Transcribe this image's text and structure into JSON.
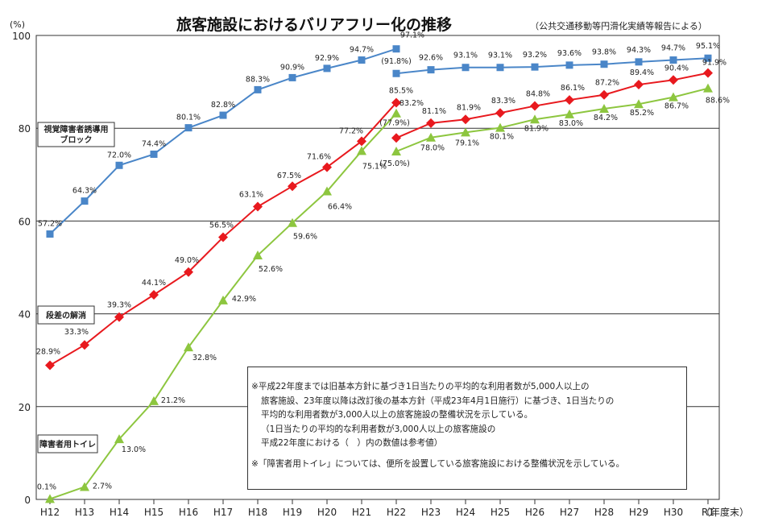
{
  "chart_data": {
    "type": "line",
    "title": "旅客施設におけるバリアフリー化の推移",
    "source": "（公共交通移動等円滑化実績等報告による）",
    "ylabel": "(%)",
    "xlabel": "（年度末）",
    "ylim": [
      0,
      100
    ],
    "yticks": [
      "0",
      "20",
      "40",
      "60",
      "80",
      "100"
    ],
    "categories": [
      "H12",
      "H13",
      "H14",
      "H15",
      "H16",
      "H17",
      "H18",
      "H19",
      "H20",
      "H21",
      "H22",
      "H23",
      "H24",
      "H25",
      "H26",
      "H27",
      "H28",
      "H29",
      "H30",
      "R1"
    ],
    "series": [
      {
        "name": "視覚障害者誘導用ブロック",
        "label_line1": "視覚障害者誘導用",
        "label_line2": "ブロック",
        "color": "#4a86c8",
        "marker": "square",
        "old": {
          "values": [
            57.2,
            64.3,
            72.0,
            74.4,
            80.1,
            82.8,
            88.3,
            90.9,
            92.9,
            94.7,
            97.1
          ],
          "labels": [
            "57.2%",
            "64.3%",
            "72.0%",
            "74.4%",
            "80.1%",
            "82.8%",
            "88.3%",
            "90.9%",
            "92.9%",
            "94.7%",
            "97.1%"
          ]
        },
        "new": {
          "values": [
            91.8,
            92.6,
            93.1,
            93.1,
            93.2,
            93.6,
            93.8,
            94.3,
            94.7,
            95.1
          ],
          "labels": [
            "(91.8%)",
            "92.6%",
            "93.1%",
            "93.1%",
            "93.2%",
            "93.6%",
            "93.8%",
            "94.3%",
            "94.7%",
            "95.1%"
          ]
        }
      },
      {
        "name": "段差の解消",
        "label_line1": "段差の解消",
        "label_line2": "",
        "color": "#e8191e",
        "marker": "diamond",
        "old": {
          "values": [
            28.9,
            33.3,
            39.3,
            44.1,
            49.0,
            56.5,
            63.1,
            67.5,
            71.6,
            77.2,
            85.5
          ],
          "labels": [
            "28.9%",
            "33.3%",
            "39.3%",
            "44.1%",
            "49.0%",
            "56.5%",
            "63.1%",
            "67.5%",
            "71.6%",
            "77.2%",
            "85.5%"
          ]
        },
        "new": {
          "values": [
            77.9,
            81.1,
            81.9,
            83.3,
            84.8,
            86.1,
            87.2,
            89.4,
            90.4,
            91.9
          ],
          "labels": [
            "(77.9%)",
            "81.1%",
            "81.9%",
            "83.3%",
            "84.8%",
            "86.1%",
            "87.2%",
            "89.4%",
            "90.4%",
            "91.9%"
          ]
        }
      },
      {
        "name": "障害者用トイレ",
        "label_line1": "障害者用トイレ",
        "label_line2": "",
        "color": "#8dc63f",
        "marker": "triangle",
        "old": {
          "values": [
            0.1,
            2.7,
            13.0,
            21.2,
            32.8,
            42.9,
            52.6,
            59.6,
            66.4,
            75.1,
            83.2
          ],
          "labels": [
            "0.1%",
            "2.7%",
            "13.0%",
            "21.2%",
            "32.8%",
            "42.9%",
            "52.6%",
            "59.6%",
            "66.4%",
            "75.1%",
            "83.2%"
          ]
        },
        "new": {
          "values": [
            75.0,
            78.0,
            79.1,
            80.1,
            81.9,
            83.0,
            84.2,
            85.2,
            86.7,
            88.6
          ],
          "labels": [
            "(75.0%)",
            "78.0%",
            "79.1%",
            "80.1%",
            "81.9%",
            "83.0%",
            "84.2%",
            "85.2%",
            "86.7%",
            "88.6%"
          ]
        }
      }
    ]
  },
  "notes": {
    "line1": "※平成22年度までは旧基本方針に基づき1日当たりの平均的な利用者数が5,000人以上の",
    "line2": "旅客施設、23年度以降は改訂後の基本方針（平成23年4月1日施行）に基づき、1日当たりの",
    "line3": "平均的な利用者数が3,000人以上の旅客施設の整備状況を示している。",
    "line4": "（1日当たりの平均的な利用者数が3,000人以上の旅客施設の",
    "line5": "平成22年度における（　）内の数値は参考値）",
    "line6": "※「障害者用トイレ」については、便所を設置している旅客施設における整備状況を示している。"
  }
}
